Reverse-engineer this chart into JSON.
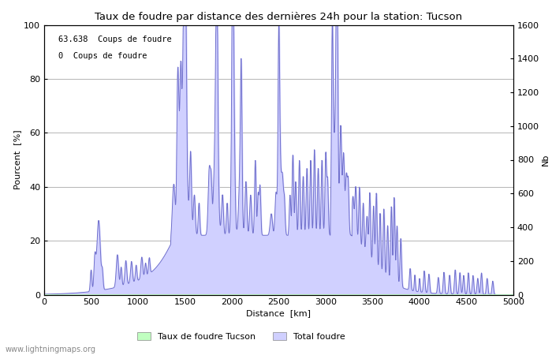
{
  "title": "Taux de foudre par distance des dernières 24h pour la station: Tucson",
  "xlabel": "Distance  [km]",
  "ylabel_left": "Pourcent  [%]",
  "ylabel_right": "Nb",
  "xlim": [
    0,
    5000
  ],
  "ylim_left": [
    0,
    100
  ],
  "ylim_right": [
    0,
    1600
  ],
  "annotation1": "63.638  Coups de foudre",
  "annotation2": "0  Coups de foudre",
  "legend_label1": "Taux de foudre Tucson",
  "legend_label2": "Total foudre",
  "fill_color": "#d0d0ff",
  "fill_color2": "#c0ffc0",
  "line_color": "#7070cc",
  "watermark": "www.lightningmaps.org",
  "background_color": "#ffffff",
  "yticks_left": [
    0,
    20,
    40,
    60,
    80,
    100
  ],
  "yticks_right": [
    0,
    200,
    400,
    600,
    800,
    1000,
    1200,
    1400,
    1600
  ],
  "xticks": [
    0,
    500,
    1000,
    1500,
    2000,
    2500,
    3000,
    3500,
    4000,
    4500,
    5000
  ]
}
